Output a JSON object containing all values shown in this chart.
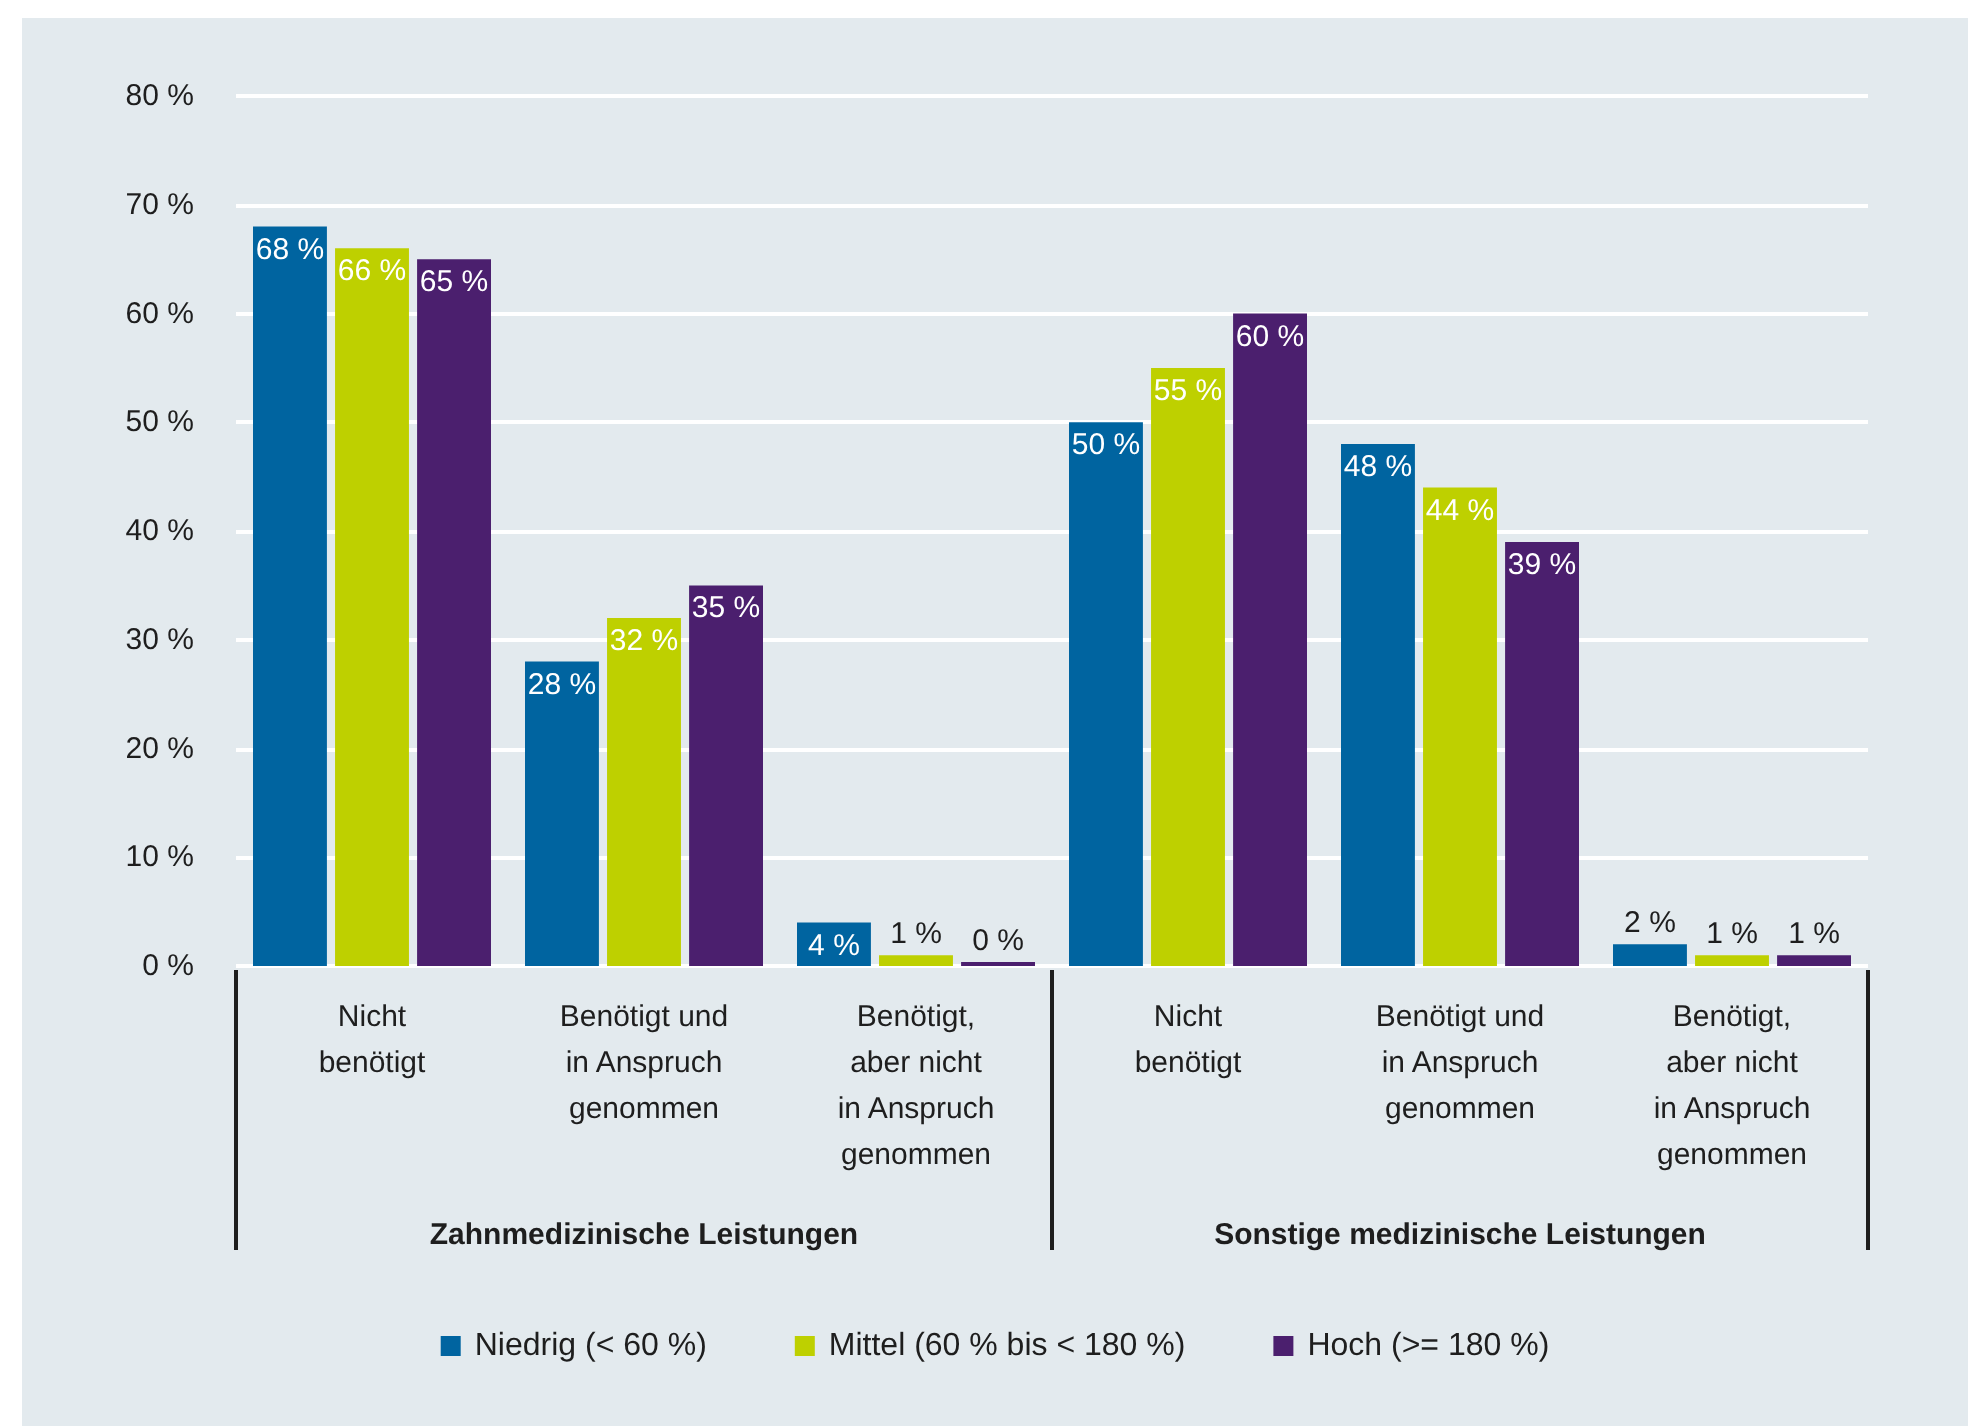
{
  "chart_data": {
    "type": "bar",
    "categories": [
      "Nicht\nbenötigt",
      "Benötigt und\nin Anspruch\ngenommen",
      "Benötigt,\naber nicht\nin Anspruch\ngenommen",
      "Nicht\nbenötigt",
      "Benötigt und\nin Anspruch\ngenommen",
      "Benötigt,\naber nicht\nin Anspruch\ngenommen"
    ],
    "series": [
      {
        "name": "Niedrig (< 60 %)",
        "color": "#0064a0",
        "values": [
          68,
          28,
          4,
          50,
          48,
          2
        ],
        "value_labels": [
          "68 %",
          "28 %",
          "4 %",
          "50 %",
          "48 %",
          "2 %"
        ]
      },
      {
        "name": "Mittel (60 % bis < 180 %)",
        "color": "#bed000",
        "values": [
          66,
          32,
          1,
          55,
          44,
          1
        ],
        "value_labels": [
          "66 %",
          "32 %",
          "1 %",
          "55 %",
          "44 %",
          "1 %"
        ]
      },
      {
        "name": "Hoch (>= 180 %)",
        "color": "#4b1f6e",
        "values": [
          65,
          35,
          0,
          60,
          39,
          1
        ],
        "value_labels": [
          "65 %",
          "35 %",
          "0 %",
          "60 %",
          "39 %",
          "1 %"
        ]
      }
    ],
    "ylim": [
      0,
      80
    ],
    "yticks": [
      {
        "value": 0,
        "label": "0 %"
      },
      {
        "value": 10,
        "label": "10 %"
      },
      {
        "value": 20,
        "label": "20 %"
      },
      {
        "value": 30,
        "label": "30 %"
      },
      {
        "value": 40,
        "label": "40 %"
      },
      {
        "value": 50,
        "label": "50 %"
      },
      {
        "value": 60,
        "label": "60 %"
      },
      {
        "value": 70,
        "label": "70 %"
      },
      {
        "value": 80,
        "label": "80 %"
      }
    ],
    "grid": "y",
    "legend": "bottom",
    "annotations": [
      "Zahnmedizinische Leistungen",
      "Sonstige medizinische Leistungen"
    ]
  }
}
